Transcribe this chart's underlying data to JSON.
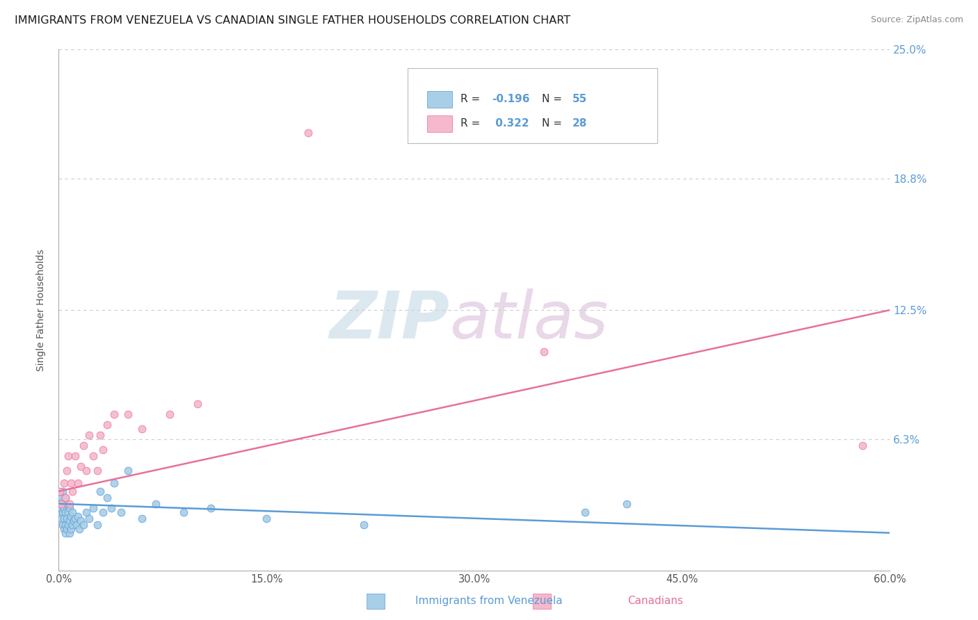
{
  "title": "IMMIGRANTS FROM VENEZUELA VS CANADIAN SINGLE FATHER HOUSEHOLDS CORRELATION CHART",
  "source": "Source: ZipAtlas.com",
  "xlabel_blue": "Immigrants from Venezuela",
  "xlabel_pink": "Canadians",
  "ylabel": "Single Father Households",
  "watermark1": "ZIP",
  "watermark2": "atlas",
  "legend_r1": "R = ",
  "legend_v1": "-0.196",
  "legend_n1": "  N = ",
  "legend_nv1": "55",
  "legend_r2": "R =  ",
  "legend_v2": "0.322",
  "legend_n2": "  N = ",
  "legend_nv2": "28",
  "xlim": [
    0.0,
    0.6
  ],
  "ylim": [
    0.0,
    0.25
  ],
  "yticks": [
    0.0,
    0.063,
    0.125,
    0.188,
    0.25
  ],
  "ytick_labels": [
    "",
    "6.3%",
    "12.5%",
    "18.8%",
    "25.0%"
  ],
  "xticks": [
    0.0,
    0.15,
    0.3,
    0.45,
    0.6
  ],
  "xtick_labels": [
    "0.0%",
    "15.0%",
    "30.0%",
    "45.0%",
    "60.0%"
  ],
  "blue_scatter_x": [
    0.001,
    0.001,
    0.001,
    0.002,
    0.002,
    0.002,
    0.003,
    0.003,
    0.003,
    0.003,
    0.004,
    0.004,
    0.004,
    0.005,
    0.005,
    0.005,
    0.005,
    0.006,
    0.006,
    0.006,
    0.007,
    0.007,
    0.008,
    0.008,
    0.008,
    0.009,
    0.009,
    0.01,
    0.01,
    0.011,
    0.012,
    0.013,
    0.014,
    0.015,
    0.016,
    0.018,
    0.02,
    0.022,
    0.025,
    0.028,
    0.03,
    0.032,
    0.035,
    0.038,
    0.04,
    0.045,
    0.05,
    0.06,
    0.07,
    0.09,
    0.11,
    0.15,
    0.22,
    0.38,
    0.41
  ],
  "blue_scatter_y": [
    0.028,
    0.032,
    0.036,
    0.025,
    0.03,
    0.035,
    0.022,
    0.028,
    0.032,
    0.038,
    0.02,
    0.025,
    0.03,
    0.018,
    0.022,
    0.028,
    0.035,
    0.02,
    0.025,
    0.032,
    0.022,
    0.028,
    0.018,
    0.024,
    0.03,
    0.02,
    0.026,
    0.022,
    0.028,
    0.024,
    0.025,
    0.022,
    0.026,
    0.02,
    0.024,
    0.022,
    0.028,
    0.025,
    0.03,
    0.022,
    0.038,
    0.028,
    0.035,
    0.03,
    0.042,
    0.028,
    0.048,
    0.025,
    0.032,
    0.028,
    0.03,
    0.025,
    0.022,
    0.028,
    0.032
  ],
  "pink_scatter_x": [
    0.001,
    0.002,
    0.004,
    0.005,
    0.006,
    0.007,
    0.008,
    0.009,
    0.01,
    0.012,
    0.014,
    0.016,
    0.018,
    0.02,
    0.022,
    0.025,
    0.028,
    0.03,
    0.032,
    0.035,
    0.04,
    0.05,
    0.06,
    0.08,
    0.1,
    0.35,
    0.58,
    0.18
  ],
  "pink_scatter_y": [
    0.038,
    0.032,
    0.042,
    0.035,
    0.048,
    0.055,
    0.032,
    0.042,
    0.038,
    0.055,
    0.042,
    0.05,
    0.06,
    0.048,
    0.065,
    0.055,
    0.048,
    0.065,
    0.058,
    0.07,
    0.075,
    0.075,
    0.068,
    0.075,
    0.08,
    0.105,
    0.06,
    0.21
  ],
  "blue_line_x": [
    0.0,
    0.6
  ],
  "blue_line_y": [
    0.032,
    0.018
  ],
  "pink_line_x": [
    0.0,
    0.6
  ],
  "pink_line_y": [
    0.038,
    0.125
  ],
  "blue_color": "#a8cfe8",
  "pink_color": "#f5b8cc",
  "blue_line_color": "#5b9bd5",
  "pink_line_color": "#e87099",
  "grid_color": "#cccccc",
  "right_label_color": "#5b9bd5",
  "title_fontsize": 11.5,
  "source_fontsize": 9,
  "watermark_color": "#dce8f0",
  "text_blue_color": "#5b9bd5",
  "text_black_color": "#333333",
  "background_color": "#ffffff"
}
